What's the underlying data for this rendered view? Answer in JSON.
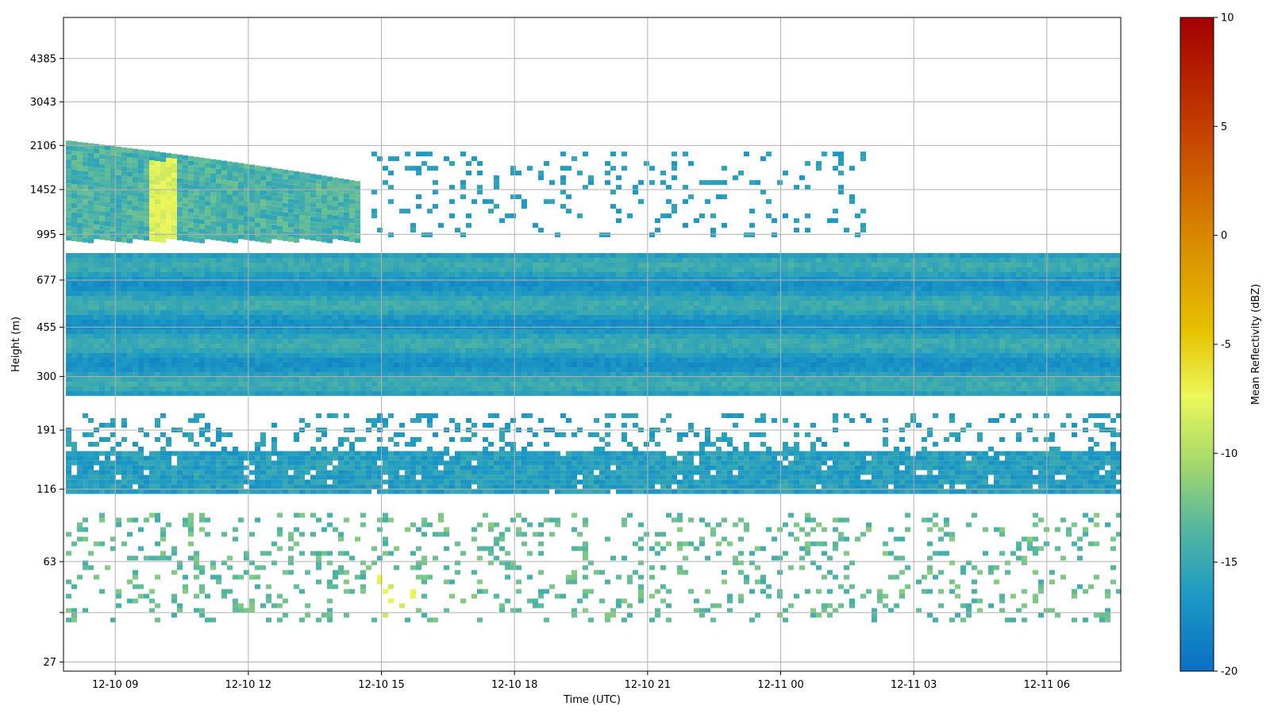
{
  "chart_data": {
    "type": "heatmap",
    "title": "",
    "xlabel": "Time (UTC)",
    "ylabel": "Height (m)",
    "colorbar_label": "Mean Reflectivity (dBZ)",
    "grid": true,
    "x_range": [
      "2018-12-10 07:50",
      "2018-12-11 07:40"
    ],
    "x_ticks": [
      "12-10 09",
      "12-10 12",
      "12-10 15",
      "12-10 18",
      "12-10 21",
      "12-11 00",
      "12-11 03",
      "12-11 06"
    ],
    "y_scale": "log",
    "y_range_m": [
      25,
      6200
    ],
    "y_ticks": [
      "27",
      "41",
      "63",
      "116",
      "191",
      "300",
      "455",
      "677",
      "995",
      "1452",
      "2106",
      "3043",
      "4385"
    ],
    "y_ticks_shown": [
      "27",
      "63",
      "116",
      "191",
      "300",
      "455",
      "677",
      "995",
      "1452",
      "2106",
      "3043",
      "4385"
    ],
    "colorbar_range_dbz": [
      -20,
      10
    ],
    "colorbar_ticks": [
      "10",
      "5",
      "0",
      "-5",
      "-10",
      "-15",
      "-20"
    ],
    "colormap": [
      "#0a6fc4",
      "#1e9bc4",
      "#56b79f",
      "#a6d96a",
      "#ecf75a",
      "#e6c200",
      "#d98a00",
      "#c43f00",
      "#a30000"
    ],
    "echo_layers": [
      {
        "from": "2018-12-10 07:50",
        "to": "2018-12-11 07:40",
        "height_bottom_m": 116,
        "height_top_m": 160,
        "mean_dbz": -16
      },
      {
        "from": "2018-12-10 07:50",
        "to": "2018-12-11 07:40",
        "height_bottom_m": 265,
        "height_top_m": 850,
        "mean_dbz": -16
      },
      {
        "from": "2018-12-10 07:50",
        "to": "2018-12-10 14:30",
        "height_bottom_m": 850,
        "height_top_m": 2200,
        "mean_dbz": -14
      },
      {
        "from": "2018-12-10 09:40",
        "to": "2018-12-10 10:20",
        "height_bottom_m": 700,
        "height_top_m": 1900,
        "mean_dbz": -8
      },
      {
        "from": "2018-12-10 14:50",
        "to": "2018-12-10 15:40",
        "height_bottom_m": 40,
        "height_top_m": 60,
        "mean_dbz": -8
      }
    ]
  }
}
